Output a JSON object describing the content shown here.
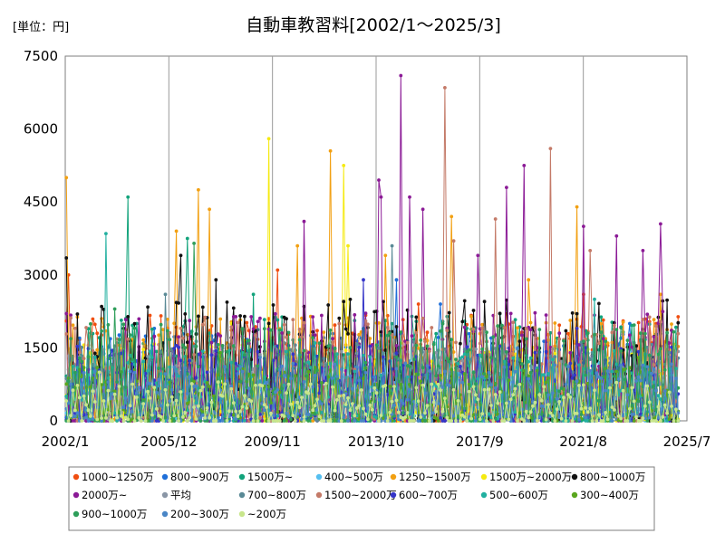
{
  "chart_data": {
    "type": "line",
    "title": "自動車教習料[2002/1～2025/3]",
    "unit_label": "[単位：円]",
    "xlabel": "",
    "ylabel": "",
    "x_range": [
      "2002-01",
      "2025-07"
    ],
    "x_tick_labels": [
      "2002/1",
      "2005/12",
      "2009/11",
      "2013/10",
      "2017/9",
      "2021/8",
      "2025/7"
    ],
    "ylim": [
      0,
      7500
    ],
    "y_ticks": [
      0,
      1500,
      3000,
      4500,
      6000,
      7500
    ],
    "y_tick_labels": [
      "0",
      "1500",
      "3000",
      "4500",
      "6000",
      "7500"
    ],
    "grid": "vertical",
    "legend_position": "bottom",
    "series": [
      {
        "name": "1000~1250万",
        "color": "#f04e10",
        "base": 900,
        "amp": 1300,
        "spikes": [
          [
            1,
            3000
          ],
          [
            35,
            1200
          ],
          [
            64,
            1600
          ],
          [
            92,
            2100
          ],
          [
            96,
            3100
          ],
          [
            130,
            1800
          ],
          [
            160,
            2400
          ],
          [
            200,
            2200
          ],
          [
            235,
            2600
          ],
          [
            268,
            2000
          ]
        ]
      },
      {
        "name": "800~900万",
        "color": "#1f6fd9",
        "base": 700,
        "amp": 1100,
        "spikes": [
          [
            40,
            1900
          ],
          [
            150,
            2900
          ],
          [
            170,
            2400
          ],
          [
            256,
            2000
          ],
          [
            282,
            3450
          ]
        ]
      },
      {
        "name": "1500万~",
        "color": "#12a37b",
        "base": 850,
        "amp": 1300,
        "spikes": [
          [
            28,
            4600
          ],
          [
            55,
            3750
          ],
          [
            85,
            2600
          ],
          [
            197,
            2200
          ]
        ]
      },
      {
        "name": "400~500万",
        "color": "#55bff0",
        "base": 550,
        "amp": 700,
        "spikes": [
          [
            80,
            1500
          ],
          [
            190,
            1400
          ]
        ]
      },
      {
        "name": "1250~1500万",
        "color": "#f2a012",
        "base": 950,
        "amp": 1200,
        "spikes": [
          [
            0,
            5000
          ],
          [
            50,
            3900
          ],
          [
            60,
            4750
          ],
          [
            65,
            4350
          ],
          [
            105,
            3600
          ],
          [
            120,
            5550
          ],
          [
            145,
            3400
          ],
          [
            175,
            4200
          ],
          [
            210,
            2900
          ],
          [
            232,
            4400
          ],
          [
            270,
            2600
          ]
        ]
      },
      {
        "name": "1500万~2000万",
        "color": "#f5ea10",
        "base": 700,
        "amp": 900,
        "spikes": [
          [
            92,
            5800
          ],
          [
            126,
            5250
          ],
          [
            128,
            3600
          ],
          [
            75,
            2000
          ]
        ]
      },
      {
        "name": "800~1000万",
        "color": "#111111",
        "base": 1100,
        "amp": 1400,
        "spikes": [
          [
            0,
            3350
          ],
          [
            52,
            3400
          ],
          [
            68,
            2900
          ],
          [
            26,
            1900
          ]
        ]
      },
      {
        "name": "2000万~",
        "color": "#8b1a96",
        "base": 750,
        "amp": 1500,
        "spikes": [
          [
            108,
            4100
          ],
          [
            142,
            4950
          ],
          [
            143,
            4600
          ],
          [
            152,
            7100
          ],
          [
            156,
            4600
          ],
          [
            162,
            4350
          ],
          [
            187,
            3400
          ],
          [
            200,
            4800
          ],
          [
            208,
            5250
          ],
          [
            235,
            4000
          ],
          [
            250,
            3800
          ],
          [
            262,
            3500
          ],
          [
            270,
            4050
          ]
        ]
      },
      {
        "name": "平均",
        "color": "#8a96a6",
        "base": 800,
        "amp": 700,
        "spikes": [
          [
            100,
            1300
          ],
          [
            220,
            1250
          ]
        ]
      },
      {
        "name": "700~800万",
        "color": "#5a8a96",
        "base": 750,
        "amp": 900,
        "spikes": [
          [
            45,
            2600
          ],
          [
            148,
            3600
          ]
        ]
      },
      {
        "name": "1500~2000万",
        "color": "#c47a68",
        "base": 850,
        "amp": 1300,
        "spikes": [
          [
            172,
            6850
          ],
          [
            195,
            4150
          ],
          [
            220,
            5600
          ],
          [
            176,
            3700
          ],
          [
            238,
            3500
          ]
        ]
      },
      {
        "name": "600~700万",
        "color": "#3535c8",
        "base": 650,
        "amp": 900,
        "spikes": [
          [
            135,
            2900
          ],
          [
            232,
            1900
          ]
        ]
      },
      {
        "name": "500~600万",
        "color": "#22b0a0",
        "base": 600,
        "amp": 850,
        "spikes": [
          [
            18,
            3850
          ],
          [
            113,
            1600
          ],
          [
            240,
            2500
          ]
        ]
      },
      {
        "name": "300~400万",
        "color": "#5aa61e",
        "base": 450,
        "amp": 650,
        "spikes": [
          [
            70,
            1400
          ],
          [
            260,
            1300
          ]
        ]
      },
      {
        "name": "900~1000万",
        "color": "#2e9e5a",
        "base": 800,
        "amp": 1200,
        "spikes": [
          [
            22,
            2300
          ],
          [
            58,
            3650
          ]
        ]
      },
      {
        "name": "200~300万",
        "color": "#4a86c6",
        "base": 500,
        "amp": 700,
        "spikes": [
          [
            88,
            1300
          ],
          [
            205,
            1500
          ]
        ]
      },
      {
        "name": "~200万",
        "color": "#c8e68c",
        "base": 300,
        "amp": 500,
        "spikes": [
          [
            15,
            1000
          ]
        ]
      }
    ]
  }
}
